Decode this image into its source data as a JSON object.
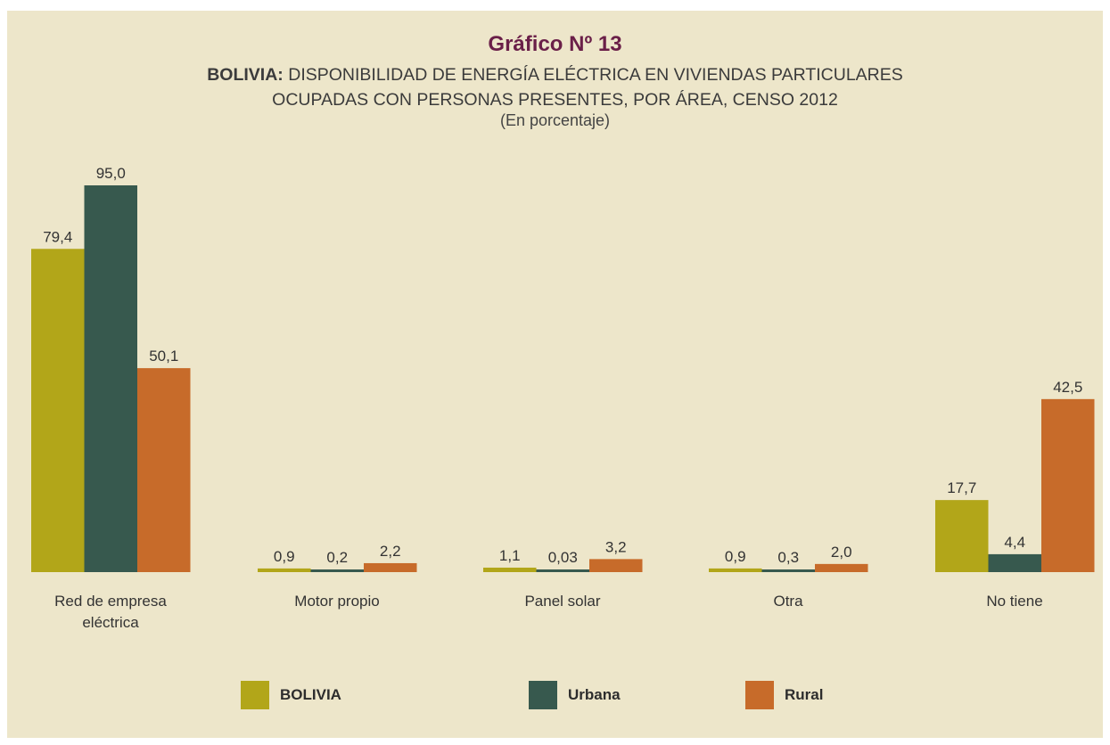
{
  "chart_data": {
    "type": "bar",
    "title": "Gráfico Nº 13",
    "subtitle_bold": "BOLIVIA:",
    "subtitle_line1": "DISPONIBILIDAD DE ENERGÍA ELÉCTRICA EN VIVIENDAS PARTICULARES",
    "subtitle_line2": "OCUPADAS CON PERSONAS PRESENTES, POR ÁREA, CENSO 2012",
    "units": "(En porcentaje)",
    "categories": [
      "Red de empresa eléctrica",
      "Motor propio",
      "Panel solar",
      "Otra",
      "No tiene"
    ],
    "series": [
      {
        "name": "BOLIVIA",
        "color": "#b2a619",
        "values": [
          79.4,
          0.9,
          1.1,
          0.9,
          17.7
        ],
        "labels": [
          "79,4",
          "0,9",
          "1,1",
          "0,9",
          "17,7"
        ]
      },
      {
        "name": "Urbana",
        "color": "#37594e",
        "values": [
          95.0,
          0.2,
          0.03,
          0.3,
          4.4
        ],
        "labels": [
          "95,0",
          "0,2",
          "0,03",
          "0,3",
          "4,4"
        ]
      },
      {
        "name": "Rural",
        "color": "#c76b2a",
        "values": [
          50.1,
          2.2,
          3.2,
          2.0,
          42.5
        ],
        "labels": [
          "50,1",
          "2,2",
          "3,2",
          "2,0",
          "42,5"
        ]
      }
    ],
    "ylim": [
      0,
      95
    ],
    "legend": "bottom",
    "grid": false
  }
}
